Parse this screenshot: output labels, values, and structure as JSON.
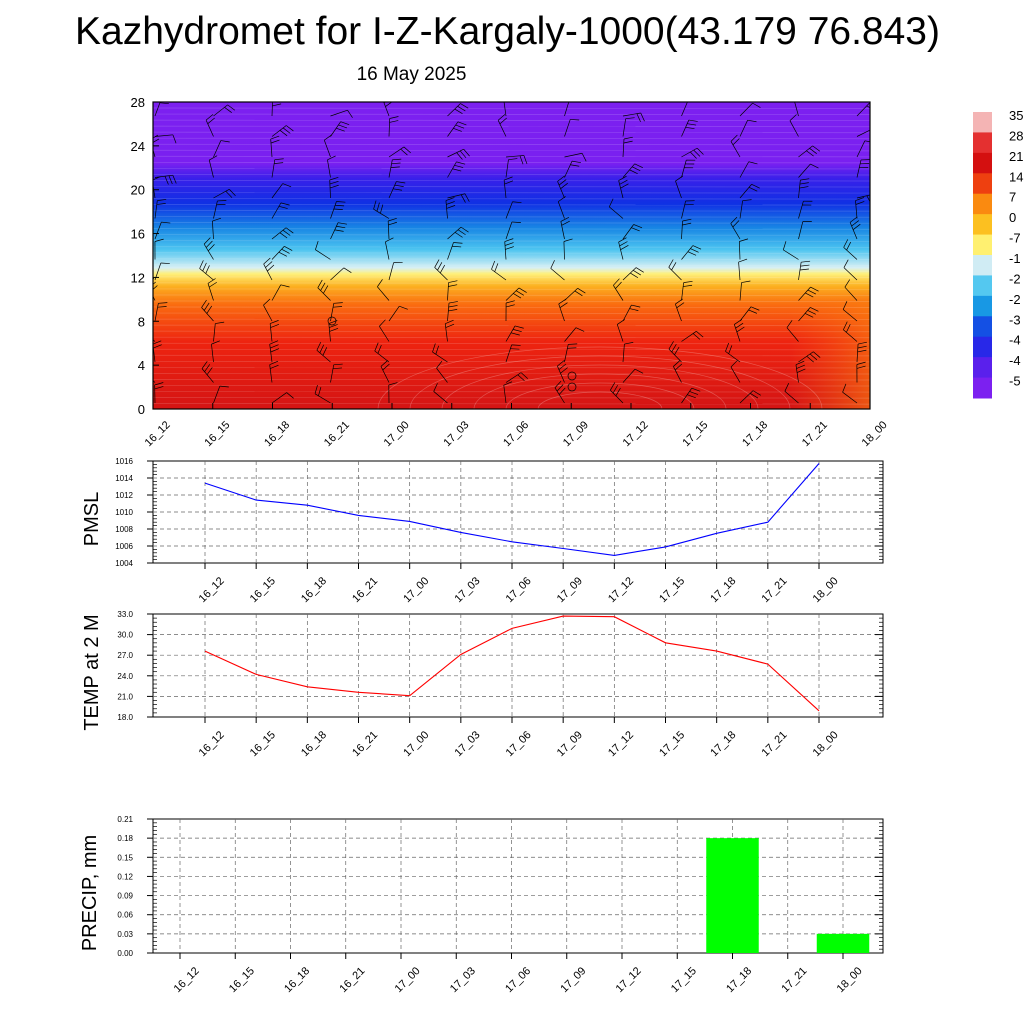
{
  "header": {
    "title": "Kazhydromet for I-Z-Kargaly-1000(43.179 76.843)",
    "subtitle": "16 May 2025"
  },
  "colors": {
    "background": "#ffffff",
    "pmsl_line": "#0000ff",
    "temp_line": "#ff0000",
    "precip_bar": "#00ff00",
    "grid": "#666666"
  },
  "chart_data": [
    {
      "type": "heatmap",
      "title": "",
      "xlabel": "",
      "ylabel": "",
      "x_tick_labels": [
        "16_12",
        "16_15",
        "16_18",
        "16_21",
        "17_00",
        "17_03",
        "17_06",
        "17_09",
        "17_12",
        "17_15",
        "17_18",
        "17_21",
        "18_00"
      ],
      "y_ticks": [
        0,
        4,
        8,
        12,
        16,
        20,
        24,
        28
      ],
      "ylim": [
        0,
        28
      ],
      "colorbar_labels": [
        "35",
        "28",
        "21",
        "14",
        "7",
        "0",
        "-7",
        "-1",
        "-2",
        "-2",
        "-3",
        "-4",
        "-4",
        "-5"
      ],
      "colorbar_colors": [
        "#f4b4b4",
        "#e43030",
        "#d41010",
        "#ee4010",
        "#fa8a10",
        "#fcc020",
        "#fff070",
        "#d0ecf4",
        "#54c8f0",
        "#1898e4",
        "#1450e4",
        "#2828e8",
        "#5a20ec",
        "#7c20f0"
      ],
      "overlay": "wind barbs"
    },
    {
      "type": "line",
      "ylabel": "PMSL",
      "categories": [
        "16_12",
        "16_15",
        "16_18",
        "16_21",
        "17_00",
        "17_03",
        "17_06",
        "17_09",
        "17_12",
        "17_15",
        "17_18",
        "17_21",
        "18_00"
      ],
      "series": [
        {
          "values": [
            1013.4,
            1011.4,
            1010.8,
            1009.6,
            1008.9,
            1007.6,
            1006.5,
            1005.7,
            1004.9,
            1005.9,
            1007.5,
            1008.8,
            1015.7
          ]
        }
      ],
      "ylim": [
        1004,
        1016
      ],
      "y_ticks": [
        1004,
        1006,
        1008,
        1010,
        1012,
        1014,
        1016
      ],
      "y_tick_labels": [
        "1004",
        "1006",
        "1008",
        "1010",
        "1012",
        "1014",
        "1016"
      ],
      "grid": true
    },
    {
      "type": "line",
      "ylabel": "TEMP at 2 M",
      "categories": [
        "16_12",
        "16_15",
        "16_18",
        "16_21",
        "17_00",
        "17_03",
        "17_06",
        "17_09",
        "17_12",
        "17_15",
        "17_18",
        "17_21",
        "18_00"
      ],
      "series": [
        {
          "values": [
            27.6,
            24.2,
            22.4,
            21.6,
            21.1,
            27.1,
            30.9,
            32.7,
            32.6,
            28.8,
            27.6,
            25.7,
            18.9
          ]
        }
      ],
      "ylim": [
        18,
        33
      ],
      "y_ticks": [
        18,
        21,
        24,
        27,
        30,
        33
      ],
      "y_tick_labels": [
        "18.0",
        "21.0",
        "24.0",
        "27.0",
        "30.0",
        "33.0"
      ],
      "grid": true
    },
    {
      "type": "bar",
      "ylabel": "PRECIP, mm",
      "categories": [
        "16_12",
        "16_15",
        "16_18",
        "16_21",
        "17_00",
        "17_03",
        "17_06",
        "17_09",
        "17_12",
        "17_15",
        "17_18",
        "17_21",
        "18_00"
      ],
      "values": [
        0,
        0,
        0,
        0,
        0,
        0,
        0,
        0,
        0,
        0,
        0.18,
        0,
        0.03
      ],
      "ylim": [
        0,
        0.21
      ],
      "y_ticks": [
        0,
        0.03,
        0.06,
        0.09,
        0.12,
        0.15,
        0.18,
        0.21
      ],
      "y_tick_labels": [
        "0.00",
        "0.03",
        "0.06",
        "0.09",
        "0.12",
        "0.15",
        "0.18",
        "0.21"
      ],
      "grid": true
    }
  ]
}
